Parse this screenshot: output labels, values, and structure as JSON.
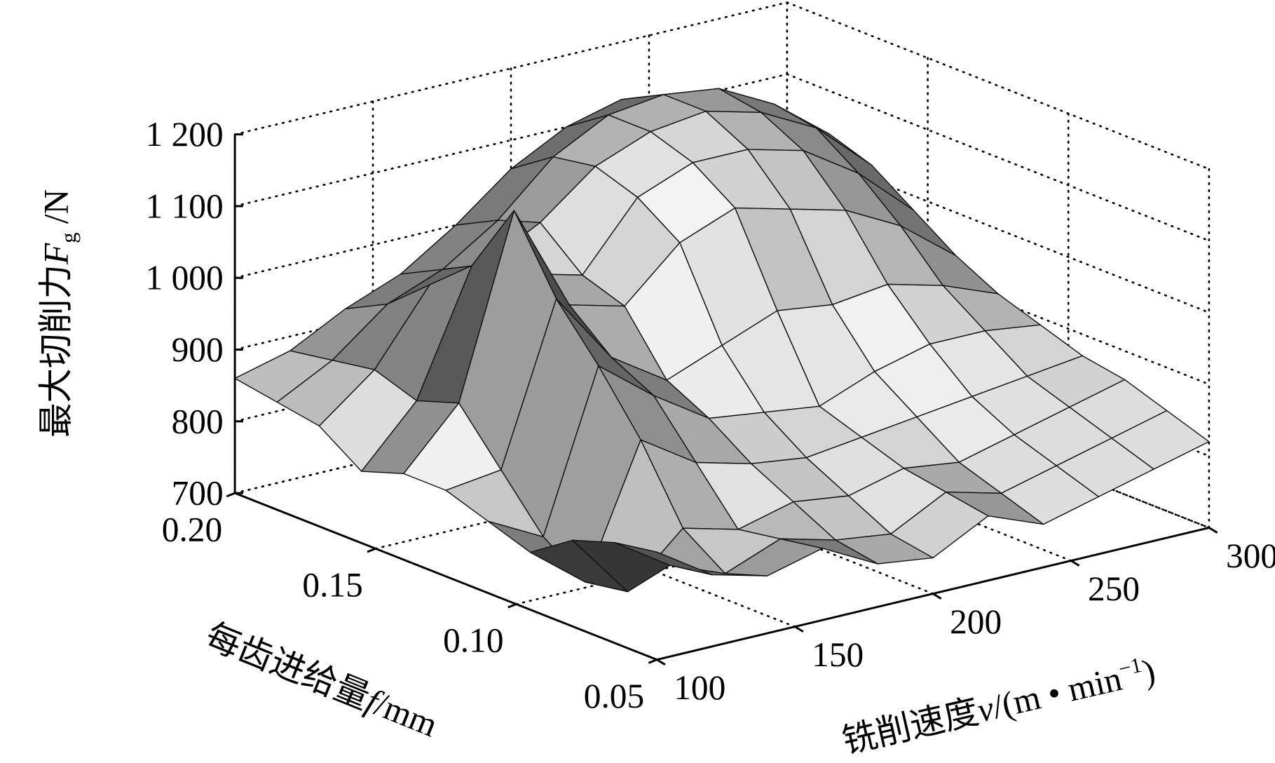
{
  "chart_data": {
    "type": "surface",
    "zlabel": {
      "text": "最大切削力",
      "symbol": "F",
      "sub": "g",
      "unit": " /N"
    },
    "ylabel": {
      "text": "每齿进给量",
      "symbol": "f",
      "unit": "/mm"
    },
    "xlabel": {
      "text": "铣削速度",
      "symbol": "v",
      "unit": "/(m • min",
      "sup": "−1",
      "close": ")"
    },
    "x": [
      100,
      120,
      140,
      160,
      180,
      200,
      220,
      240,
      260,
      280,
      300
    ],
    "y": [
      0.05,
      0.065,
      0.08,
      0.095,
      0.11,
      0.125,
      0.14,
      0.155,
      0.17,
      0.185,
      0.2
    ],
    "z": [
      [
        850,
        800,
        780,
        800,
        760,
        750,
        790,
        760,
        780,
        800,
        820
      ],
      [
        840,
        790,
        760,
        790,
        770,
        760,
        800,
        780,
        800,
        820,
        840
      ],
      [
        820,
        730,
        800,
        780,
        800,
        790,
        810,
        800,
        820,
        840,
        860
      ],
      [
        780,
        720,
        900,
        850,
        830,
        820,
        830,
        840,
        850,
        860,
        870
      ],
      [
        800,
        760,
        980,
        920,
        870,
        860,
        850,
        880,
        900,
        900,
        890
      ],
      [
        820,
        830,
        1050,
        950,
        900,
        930,
        960,
        950,
        960,
        940,
        910
      ],
      [
        820,
        900,
        1150,
        1000,
        980,
        1050,
        1080,
        1060,
        1040,
        1000,
        940
      ],
      [
        800,
        880,
        1050,
        1020,
        1000,
        1090,
        1120,
        1120,
        1100,
        1050,
        980
      ],
      [
        840,
        900,
        1000,
        1010,
        1050,
        1110,
        1140,
        1150,
        1130,
        1090,
        1020
      ],
      [
        850,
        890,
        950,
        980,
        1030,
        1100,
        1140,
        1150,
        1140,
        1100,
        1040
      ],
      [
        860,
        880,
        920,
        950,
        1000,
        1060,
        1100,
        1120,
        1110,
        1080,
        1040
      ]
    ],
    "xlim": [
      100,
      300
    ],
    "xticks": [
      100,
      150,
      200,
      250,
      300
    ],
    "ylim": [
      0.05,
      0.2
    ],
    "yticks": [
      0.05,
      {
        "value": 0.1,
        "label": "0.10"
      },
      0.15,
      {
        "value": 0.2,
        "label": "0.20"
      }
    ],
    "zlim": [
      700,
      1200
    ],
    "zticks": [
      700,
      800,
      900,
      {
        "value": 1000,
        "label": "1 000"
      },
      {
        "value": 1100,
        "label": "1 100"
      },
      {
        "value": 1200,
        "label": "1 200"
      }
    ],
    "grid": true
  }
}
